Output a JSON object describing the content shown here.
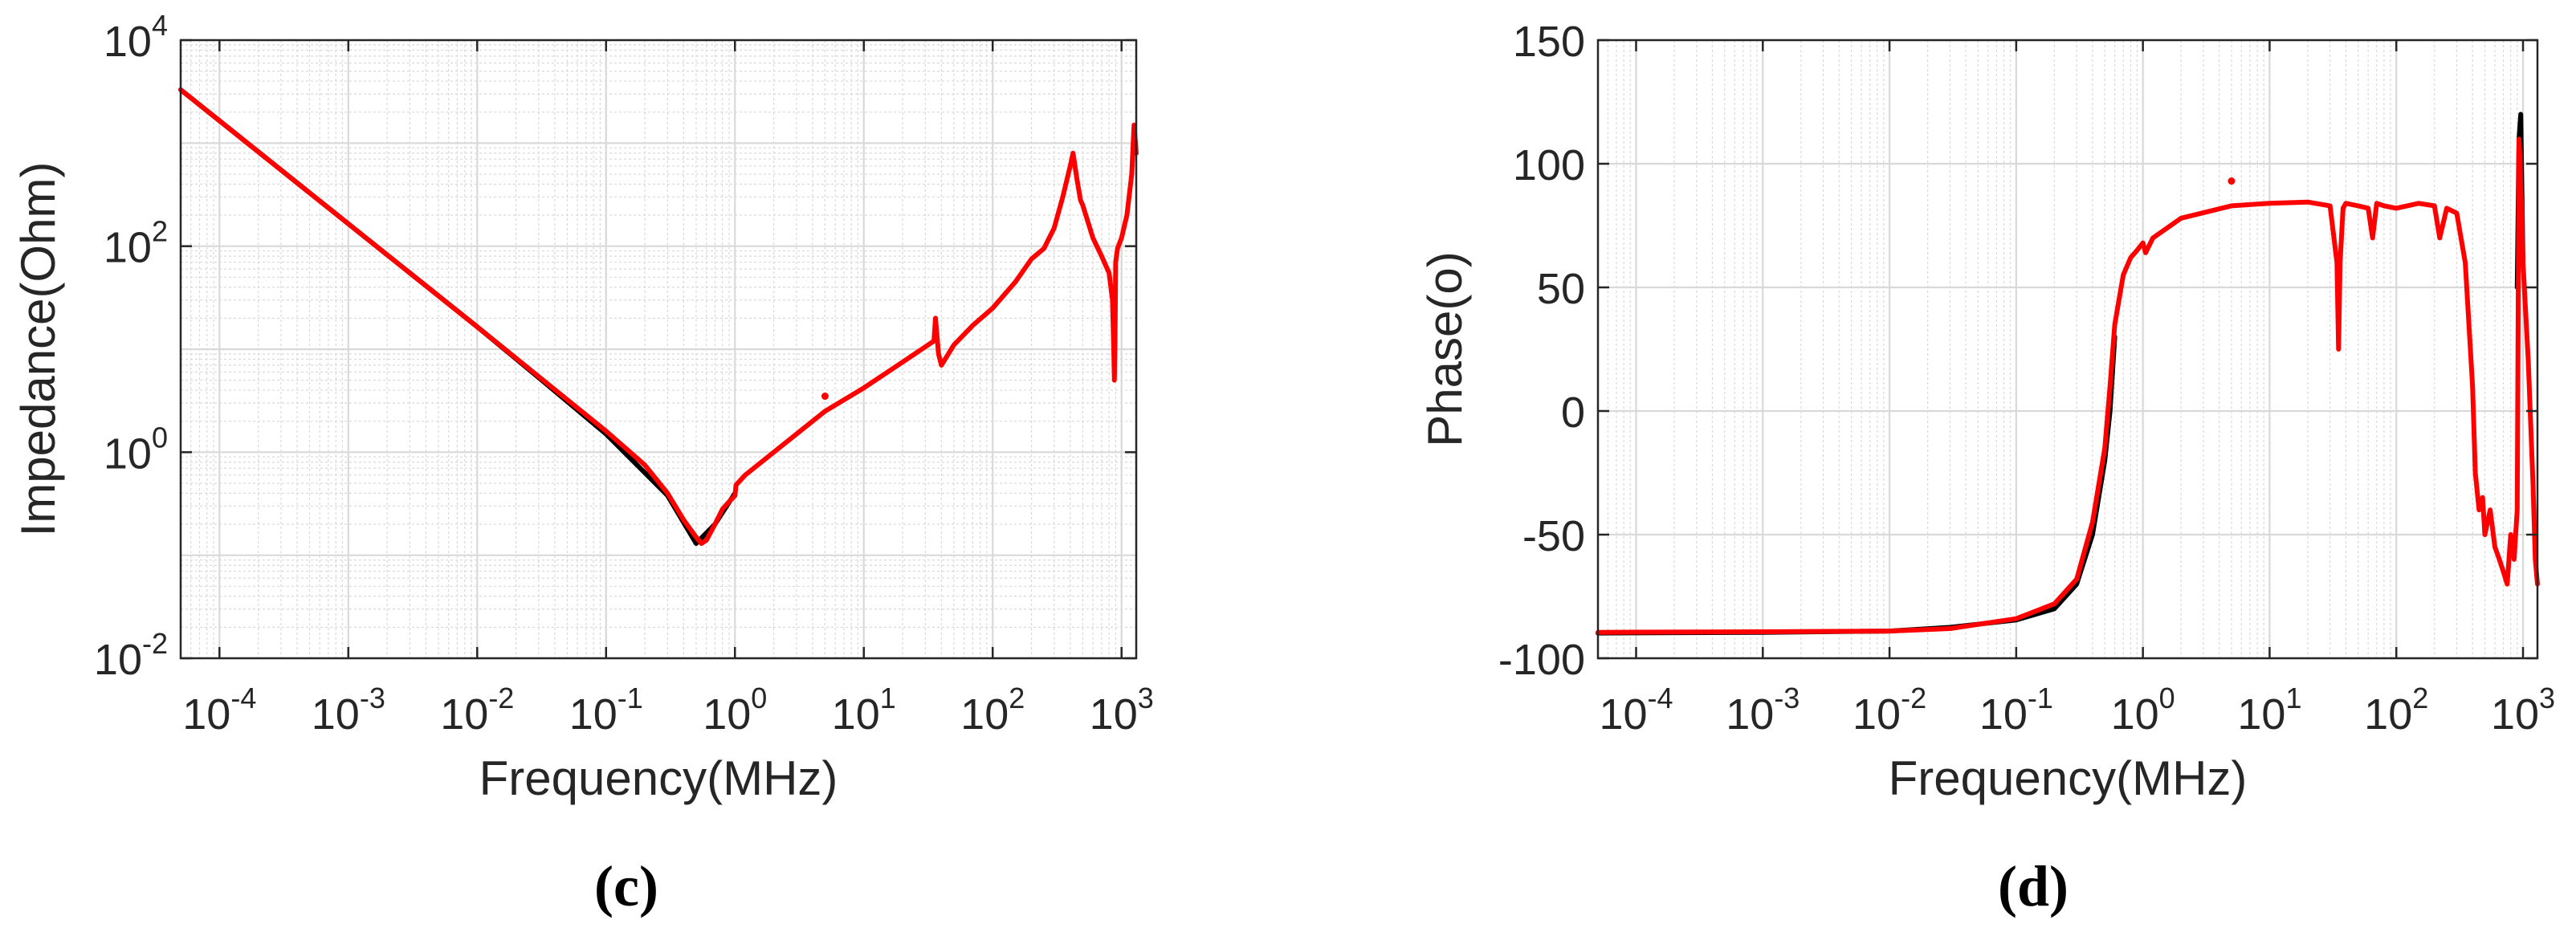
{
  "colors": {
    "measured": "#000000",
    "model": "#ff0000",
    "grid": "#d9d9d9",
    "axes": "#262626"
  },
  "chart_data": [
    {
      "type": "line",
      "panel": "(c)",
      "xlabel": "Frequency(MHz)",
      "ylabel": "Impedance(Ohm)",
      "xscale": "log",
      "yscale": "log",
      "xlim": [
        5e-05,
        1300
      ],
      "ylim": [
        0.01,
        10000
      ],
      "grid": true,
      "xticks": [
        {
          "value": 0.0001,
          "base": "10",
          "exp": "-4"
        },
        {
          "value": 0.001,
          "base": "10",
          "exp": "-3"
        },
        {
          "value": 0.01,
          "base": "10",
          "exp": "-2"
        },
        {
          "value": 0.1,
          "base": "10",
          "exp": "-1"
        },
        {
          "value": 1,
          "base": "10",
          "exp": "0"
        },
        {
          "value": 10,
          "base": "10",
          "exp": "1"
        },
        {
          "value": 100,
          "base": "10",
          "exp": "2"
        },
        {
          "value": 1000,
          "base": "10",
          "exp": "3"
        }
      ],
      "yticks": [
        {
          "value": 0.01,
          "base": "10",
          "exp": "-2"
        },
        {
          "value": 1,
          "base": "10",
          "exp": "0"
        },
        {
          "value": 100,
          "base": "10",
          "exp": "2"
        },
        {
          "value": 10000,
          "base": "10",
          "exp": "4"
        }
      ],
      "series": [
        {
          "color": "#000000",
          "x": [
            5e-05,
            0.0001,
            0.001,
            0.01,
            0.03,
            0.1,
            0.3,
            0.5,
            0.7,
            1.0
          ],
          "y": [
            3300,
            1650,
            165,
            16.5,
            5.3,
            1.5,
            0.38,
            0.13,
            0.2,
            0.4
          ]
        },
        {
          "color": "#ff0000",
          "x": [
            5e-05,
            0.0001,
            0.001,
            0.01,
            0.1,
            0.2,
            0.3,
            0.4,
            0.5,
            0.55,
            0.6,
            0.7,
            0.8,
            0.9,
            1.0,
            1.02,
            1.2,
            2,
            5,
            10,
            20,
            35,
            36,
            38,
            40,
            50,
            70,
            100,
            150,
            200,
            250,
            300,
            350,
            400,
            420,
            450,
            480,
            500,
            600,
            700,
            800,
            850,
            870,
            880,
            890,
            900,
            930,
            1000,
            1100,
            1200,
            1250,
            1300
          ],
          "y": [
            3300,
            1650,
            165,
            16.5,
            1.6,
            0.75,
            0.4,
            0.22,
            0.15,
            0.13,
            0.14,
            0.2,
            0.28,
            0.33,
            0.38,
            0.48,
            0.6,
            1.0,
            2.5,
            4.2,
            7.5,
            12,
            20,
            9,
            7,
            11,
            17,
            25,
            45,
            75,
            95,
            150,
            300,
            600,
            800,
            450,
            280,
            250,
            120,
            80,
            55,
            30,
            10,
            5,
            12,
            70,
            95,
            120,
            200,
            500,
            1500,
            800
          ]
        }
      ],
      "outliers": [
        {
          "x": 5,
          "y": 3.5,
          "color": "#ff0000"
        }
      ]
    },
    {
      "type": "line",
      "panel": "(d)",
      "xlabel": "Frequency(MHz)",
      "ylabel": "Phase(o)",
      "xscale": "log",
      "yscale": "linear",
      "xlim": [
        5e-05,
        1300
      ],
      "ylim": [
        -100,
        150
      ],
      "grid": true,
      "xticks": [
        {
          "value": 0.0001,
          "base": "10",
          "exp": "-4"
        },
        {
          "value": 0.001,
          "base": "10",
          "exp": "-3"
        },
        {
          "value": 0.01,
          "base": "10",
          "exp": "-2"
        },
        {
          "value": 0.1,
          "base": "10",
          "exp": "-1"
        },
        {
          "value": 1,
          "base": "10",
          "exp": "0"
        },
        {
          "value": 10,
          "base": "10",
          "exp": "1"
        },
        {
          "value": 100,
          "base": "10",
          "exp": "2"
        },
        {
          "value": 1000,
          "base": "10",
          "exp": "3"
        }
      ],
      "yticks": [
        {
          "value": 150,
          "text": "150"
        },
        {
          "value": 100,
          "text": "100"
        },
        {
          "value": 50,
          "text": "50"
        },
        {
          "value": 0,
          "text": "0"
        },
        {
          "value": -50,
          "text": "-50"
        },
        {
          "value": -100,
          "text": "-100"
        }
      ],
      "series": [
        {
          "color": "#000000",
          "x": [
            5e-05,
            0.001,
            0.01,
            0.03,
            0.1,
            0.2,
            0.3,
            0.4,
            0.5,
            0.55,
            0.6
          ],
          "y": [
            -89.8,
            -89.5,
            -89,
            -87.5,
            -84.5,
            -80,
            -70,
            -50,
            -20,
            0,
            30
          ]
        },
        {
          "color": "#000000",
          "x": [
            900,
            930,
            960,
            1000
          ],
          "y": [
            50,
            110,
            120,
            60
          ]
        },
        {
          "color": "#ff0000",
          "x": [
            5e-05,
            0.001,
            0.01,
            0.03,
            0.1,
            0.2,
            0.3,
            0.4,
            0.5,
            0.55,
            0.6,
            0.7,
            0.8,
            0.9,
            1.0,
            1.05,
            1.2,
            2,
            5,
            10,
            20,
            30,
            34,
            35,
            36,
            38,
            40,
            50,
            60,
            65,
            70,
            80,
            100,
            150,
            200,
            220,
            250,
            300,
            350,
            400,
            420,
            450,
            480,
            500,
            550,
            600,
            650,
            700,
            750,
            800,
            850,
            900,
            930,
            950,
            1000,
            1100,
            1200,
            1250,
            1300
          ],
          "y": [
            -89.5,
            -89.3,
            -89,
            -88,
            -84,
            -78,
            -68,
            -45,
            -15,
            10,
            35,
            55,
            62,
            65,
            68,
            64,
            70,
            78,
            83,
            84,
            84.5,
            83,
            60,
            25,
            60,
            82,
            84,
            83,
            82,
            70,
            84,
            83,
            82,
            84,
            83,
            70,
            82,
            80,
            60,
            10,
            -25,
            -40,
            -35,
            -50,
            -40,
            -55,
            -60,
            -65,
            -70,
            -50,
            -60,
            -40,
            110,
            100,
            60,
            20,
            -30,
            -60,
            -70
          ]
        }
      ],
      "outliers": [
        {
          "x": 5,
          "y": 93,
          "color": "#ff0000"
        }
      ]
    }
  ]
}
